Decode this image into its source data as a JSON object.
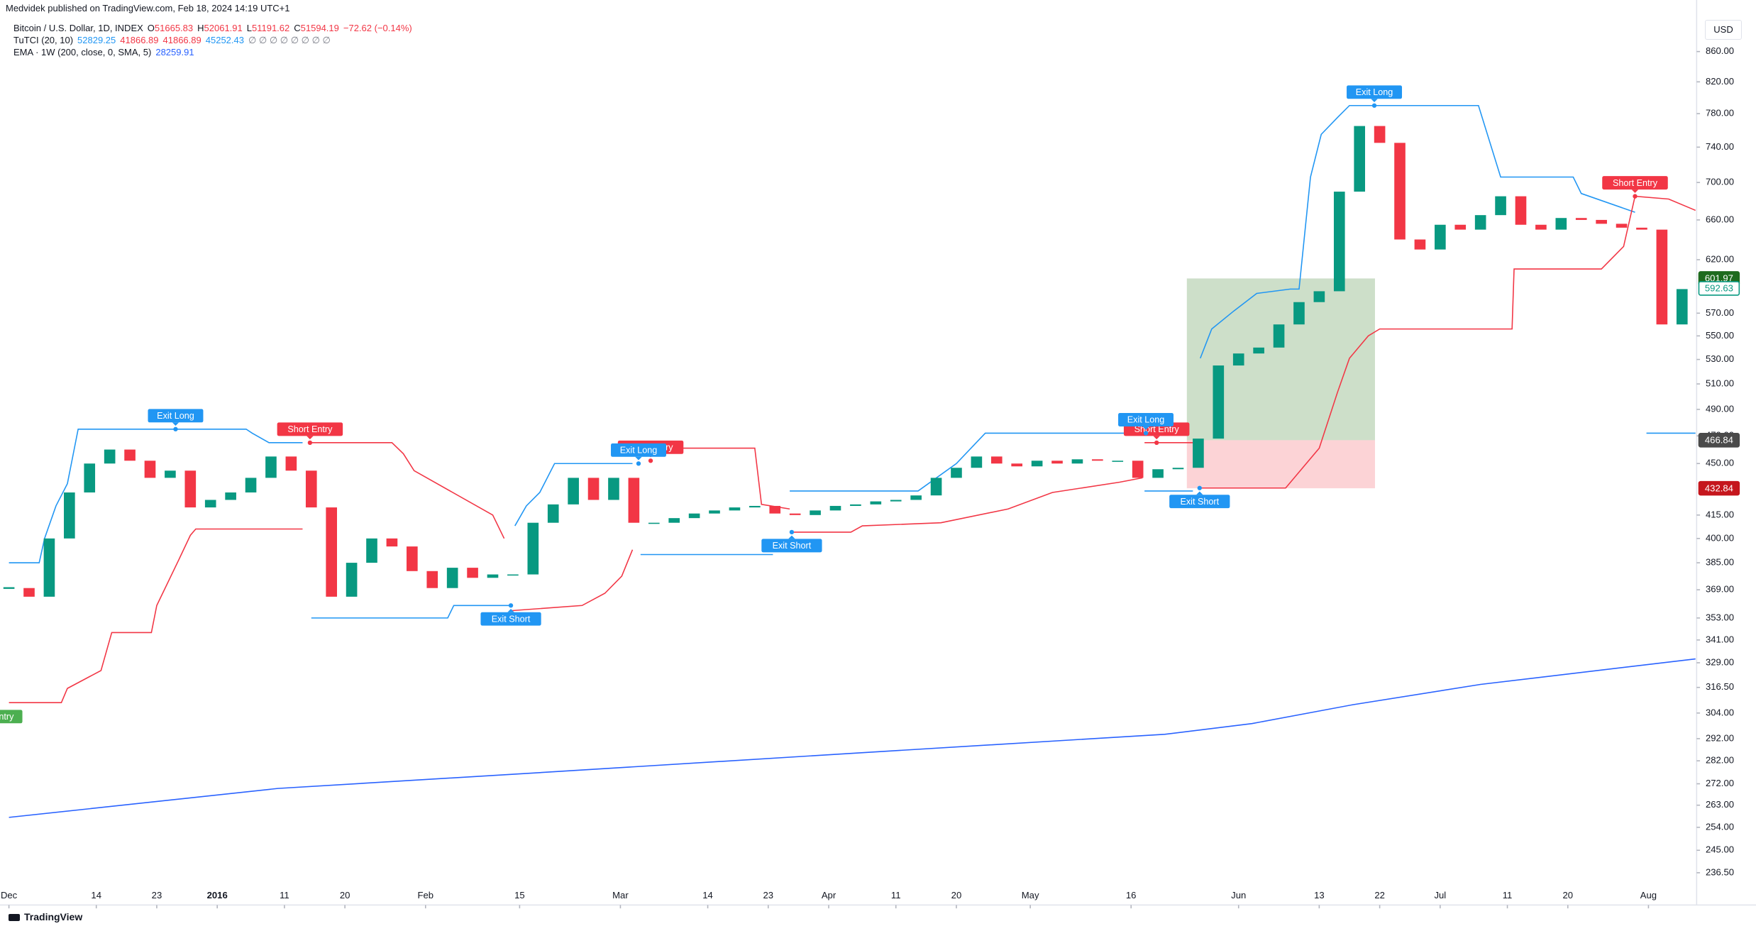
{
  "header": {
    "publisher": "Medvidek published on TradingView.com, Feb 18, 2024 14:19 UTC+1",
    "symbol": "Bitcoin / U.S. Dollar, 1D, INDEX",
    "ohlc": [
      {
        "label": "O",
        "value": "51665.83"
      },
      {
        "label": "H",
        "value": "52061.91"
      },
      {
        "label": "L",
        "value": "51191.62"
      },
      {
        "label": "C",
        "value": "51594.19"
      }
    ],
    "change": "−72.62 (−0.14%)",
    "ohlc_color": "#f23645",
    "indicators": [
      {
        "name": "TuTCI (20, 10)",
        "values": [
          "52829.25",
          "41866.89",
          "41866.89",
          "45252.43"
        ],
        "colors": [
          "#2196f3",
          "#f23645",
          "#f23645",
          "#2196f3"
        ],
        "extra": "∅ ∅ ∅ ∅ ∅ ∅ ∅ ∅"
      },
      {
        "name": "EMA · 1W (200, close, 0, SMA, 5)",
        "values": [
          "28259.91"
        ],
        "colors": [
          "#2962ff"
        ]
      }
    ],
    "currency": "USD",
    "logo": "TradingView"
  },
  "chart_data": {
    "type": "candlestick",
    "log_scale": true,
    "up_color": "#089981",
    "down_color": "#f23645",
    "xlim": [
      -1.33,
      251.17
    ],
    "ylim": [
      224.8,
      932.6
    ],
    "xticks": [
      {
        "value": 0,
        "label": "Dec"
      },
      {
        "value": 13,
        "label": "14"
      },
      {
        "value": 22,
        "label": "23"
      },
      {
        "value": 31,
        "label": "2016"
      },
      {
        "value": 41,
        "label": "11"
      },
      {
        "value": 50,
        "label": "20"
      },
      {
        "value": 62,
        "label": "Feb"
      },
      {
        "value": 76,
        "label": "15"
      },
      {
        "value": 91,
        "label": "Mar"
      },
      {
        "value": 104,
        "label": "14"
      },
      {
        "value": 113,
        "label": "23"
      },
      {
        "value": 122,
        "label": "Apr"
      },
      {
        "value": 132,
        "label": "11"
      },
      {
        "value": 141,
        "label": "20"
      },
      {
        "value": 152,
        "label": "May"
      },
      {
        "value": 167,
        "label": "16"
      },
      {
        "value": 183,
        "label": "Jun"
      },
      {
        "value": 195,
        "label": "13"
      },
      {
        "value": 204,
        "label": "22"
      },
      {
        "value": 213,
        "label": "Jul"
      },
      {
        "value": 223,
        "label": "11"
      },
      {
        "value": 232,
        "label": "20"
      },
      {
        "value": 244,
        "label": "Aug"
      }
    ],
    "yticks": [
      {
        "value": 860,
        "label": "860.00"
      },
      {
        "value": 820,
        "label": "820.00"
      },
      {
        "value": 780,
        "label": "780.00"
      },
      {
        "value": 740,
        "label": "740.00"
      },
      {
        "value": 700,
        "label": "700.00"
      },
      {
        "value": 660,
        "label": "660.00"
      },
      {
        "value": 620,
        "label": "620.00"
      },
      {
        "value": 570,
        "label": "570.00"
      },
      {
        "value": 550,
        "label": "550.00"
      },
      {
        "value": 530,
        "label": "530.00"
      },
      {
        "value": 510,
        "label": "510.00"
      },
      {
        "value": 490,
        "label": "490.00"
      },
      {
        "value": 470,
        "label": "470.00"
      },
      {
        "value": 450,
        "label": "450.00"
      },
      {
        "value": 415,
        "label": "415.00"
      },
      {
        "value": 400,
        "label": "400.00"
      },
      {
        "value": 385,
        "label": "385.00"
      },
      {
        "value": 369,
        "label": "369.00"
      },
      {
        "value": 353,
        "label": "353.00"
      },
      {
        "value": 341,
        "label": "341.00"
      },
      {
        "value": 329,
        "label": "329.00"
      },
      {
        "value": 316.5,
        "label": "316.50"
      },
      {
        "value": 304,
        "label": "304.00"
      },
      {
        "value": 292,
        "label": "292.00"
      },
      {
        "value": 282,
        "label": "282.00"
      },
      {
        "value": 272,
        "label": "272.00"
      },
      {
        "value": 263,
        "label": "263.00"
      },
      {
        "value": 254,
        "label": "254.00"
      },
      {
        "value": 245,
        "label": "245.00"
      },
      {
        "value": 236.5,
        "label": "236.50"
      }
    ],
    "price": {
      "x": [
        0,
        3,
        6,
        9,
        12,
        15,
        18,
        21,
        24,
        27,
        30,
        33,
        36,
        39,
        42,
        45,
        48,
        51,
        54,
        57,
        60,
        63,
        66,
        69,
        72,
        75,
        78,
        81,
        84,
        87,
        90,
        93,
        96,
        99,
        102,
        105,
        108,
        111,
        114,
        117,
        120,
        123,
        126,
        129,
        132,
        135,
        138,
        141,
        144,
        147,
        150,
        153,
        156,
        159,
        162,
        165,
        168,
        171,
        174,
        177,
        180,
        183,
        186,
        189,
        192,
        195,
        198,
        201,
        204,
        207,
        210,
        213,
        216,
        219,
        222,
        225,
        228,
        231,
        234,
        237,
        240,
        243,
        246,
        249
      ],
      "values": [
        370,
        365,
        400,
        430,
        450,
        460,
        452,
        440,
        445,
        420,
        425,
        430,
        440,
        455,
        445,
        420,
        365,
        385,
        400,
        395,
        380,
        370,
        382,
        376,
        378,
        378,
        410,
        422,
        440,
        425,
        440,
        410,
        410,
        413,
        416,
        418,
        420,
        421,
        416,
        415,
        418,
        421,
        422,
        424,
        425,
        428,
        440,
        447,
        455,
        450,
        448,
        452,
        450,
        453,
        452,
        452,
        440,
        446,
        447,
        468,
        525,
        535,
        540,
        560,
        580,
        590,
        690,
        765,
        745,
        640,
        630,
        655,
        650,
        665,
        685,
        655,
        650,
        662,
        660,
        656,
        652,
        650,
        560,
        592
      ]
    },
    "series": [
      {
        "color": "#2962ff",
        "x": [
          0,
          40,
          80,
          129,
          172,
          185,
          200,
          219,
          251
        ],
        "values": [
          258,
          270,
          277,
          286,
          294,
          299,
          308,
          318,
          331
        ]
      },
      {
        "color": "#2196f3",
        "x": [
          0,
          4.5,
          5.3,
          7,
          8.7,
          10.3,
          35.3,
          36.2,
          38.7,
          43.7,
          null,
          45,
          65.3,
          66.2,
          74.5,
          null,
          75.3,
          77,
          79,
          81.2,
          92.8,
          null,
          94,
          113.7,
          null,
          116.2,
          135.3,
          141,
          145.3,
          168.7,
          null,
          169,
          176.2,
          null,
          177.3,
          179,
          182.3,
          185.7,
          190.7,
          192,
          193.7,
          195.3,
          197.8,
          199.5,
          218.7,
          222,
          232.8,
          234,
          242,
          null,
          243.7,
          251
        ],
        "values": [
          385,
          385,
          400,
          421,
          436,
          475,
          475,
          472,
          465,
          465,
          null,
          353,
          353,
          360,
          360,
          null,
          408,
          421,
          430,
          450,
          450,
          null,
          390,
          390,
          null,
          431,
          431,
          450,
          472,
          472,
          null,
          431,
          431,
          null,
          531,
          556,
          572,
          588,
          592,
          592,
          706,
          755,
          776,
          790,
          790,
          706,
          706,
          688,
          668,
          null,
          472,
          472
        ]
      },
      {
        "color": "#f23645",
        "x": [
          0,
          7.8,
          8.7,
          13.7,
          15.3,
          21.2,
          22,
          25.3,
          27,
          27.8,
          43.7,
          null,
          44.5,
          57,
          58.7,
          60.3,
          72,
          73.7,
          null,
          74.5,
          85.3,
          88.7,
          91.2,
          92.8,
          null,
          94,
          111,
          112,
          116.2,
          null,
          116.2,
          125.3,
          127,
          138.7,
          148.7,
          155.3,
          165.3,
          168.7,
          null,
          169,
          176.2,
          null,
          177,
          190,
          195,
          197.7,
          199.5,
          202.3,
          204,
          223.7,
          224,
          237,
          240.3,
          242,
          247,
          251
        ],
        "values": [
          309,
          309,
          316,
          325,
          345,
          345,
          360,
          387,
          402,
          406,
          406,
          null,
          465,
          465,
          457,
          445,
          415,
          400,
          null,
          357,
          360,
          367,
          377,
          393,
          null,
          461,
          461,
          422,
          419,
          null,
          404,
          404,
          408,
          410,
          419,
          430,
          437,
          440,
          null,
          465,
          465,
          null,
          433,
          433,
          461,
          503,
          531,
          550,
          556,
          556,
          611,
          611,
          633,
          685,
          682,
          670
        ]
      }
    ],
    "position": {
      "x": [
        175.3,
        203.3
      ]
    },
    "price_labels": [
      {
        "value": 601.97,
        "color": "#1e6b1e",
        "style": "solid"
      },
      {
        "value": 592.63,
        "color": "#089981",
        "style": "outline"
      },
      {
        "value": 466.84,
        "color": "#4a4a4a",
        "style": "solid"
      },
      {
        "value": 432.84,
        "color": "#c5161d",
        "style": "solid"
      }
    ],
    "annotations": [
      {
        "text": "Long Entry",
        "x": -2.5,
        "value": 296,
        "side": "above",
        "color": "#4caf50"
      },
      {
        "text": "Exit Long",
        "x": 24.8,
        "value": 475,
        "side": "above",
        "color": "#2196f3"
      },
      {
        "text": "Short Entry",
        "x": 44.8,
        "value": 465,
        "side": "above",
        "color": "#f23645"
      },
      {
        "text": "Exit Short",
        "x": 74.7,
        "value": 360,
        "side": "below",
        "color": "#2196f3"
      },
      {
        "text": "Short Entry",
        "x": 95.5,
        "value": 452,
        "side": "above",
        "color": "#f23645"
      },
      {
        "text": "Exit Long",
        "x": 93.7,
        "value": 450,
        "side": "above",
        "color": "#2196f3"
      },
      {
        "text": "Exit Short",
        "x": 116.5,
        "value": 404,
        "side": "below",
        "color": "#2196f3"
      },
      {
        "text": "Short Entry",
        "x": 170.8,
        "value": 465,
        "side": "above",
        "color": "#f23645"
      },
      {
        "text": "Exit Long",
        "x": 169.2,
        "value": 472,
        "side": "above",
        "color": "#2196f3"
      },
      {
        "text": "Exit Short",
        "x": 177.2,
        "value": 433,
        "side": "below",
        "color": "#2196f3"
      },
      {
        "text": "Exit Long",
        "x": 203.2,
        "value": 790,
        "side": "above",
        "color": "#2196f3"
      },
      {
        "text": "Short Entry",
        "x": 242,
        "value": 685,
        "side": "above",
        "color": "#f23645"
      }
    ]
  }
}
